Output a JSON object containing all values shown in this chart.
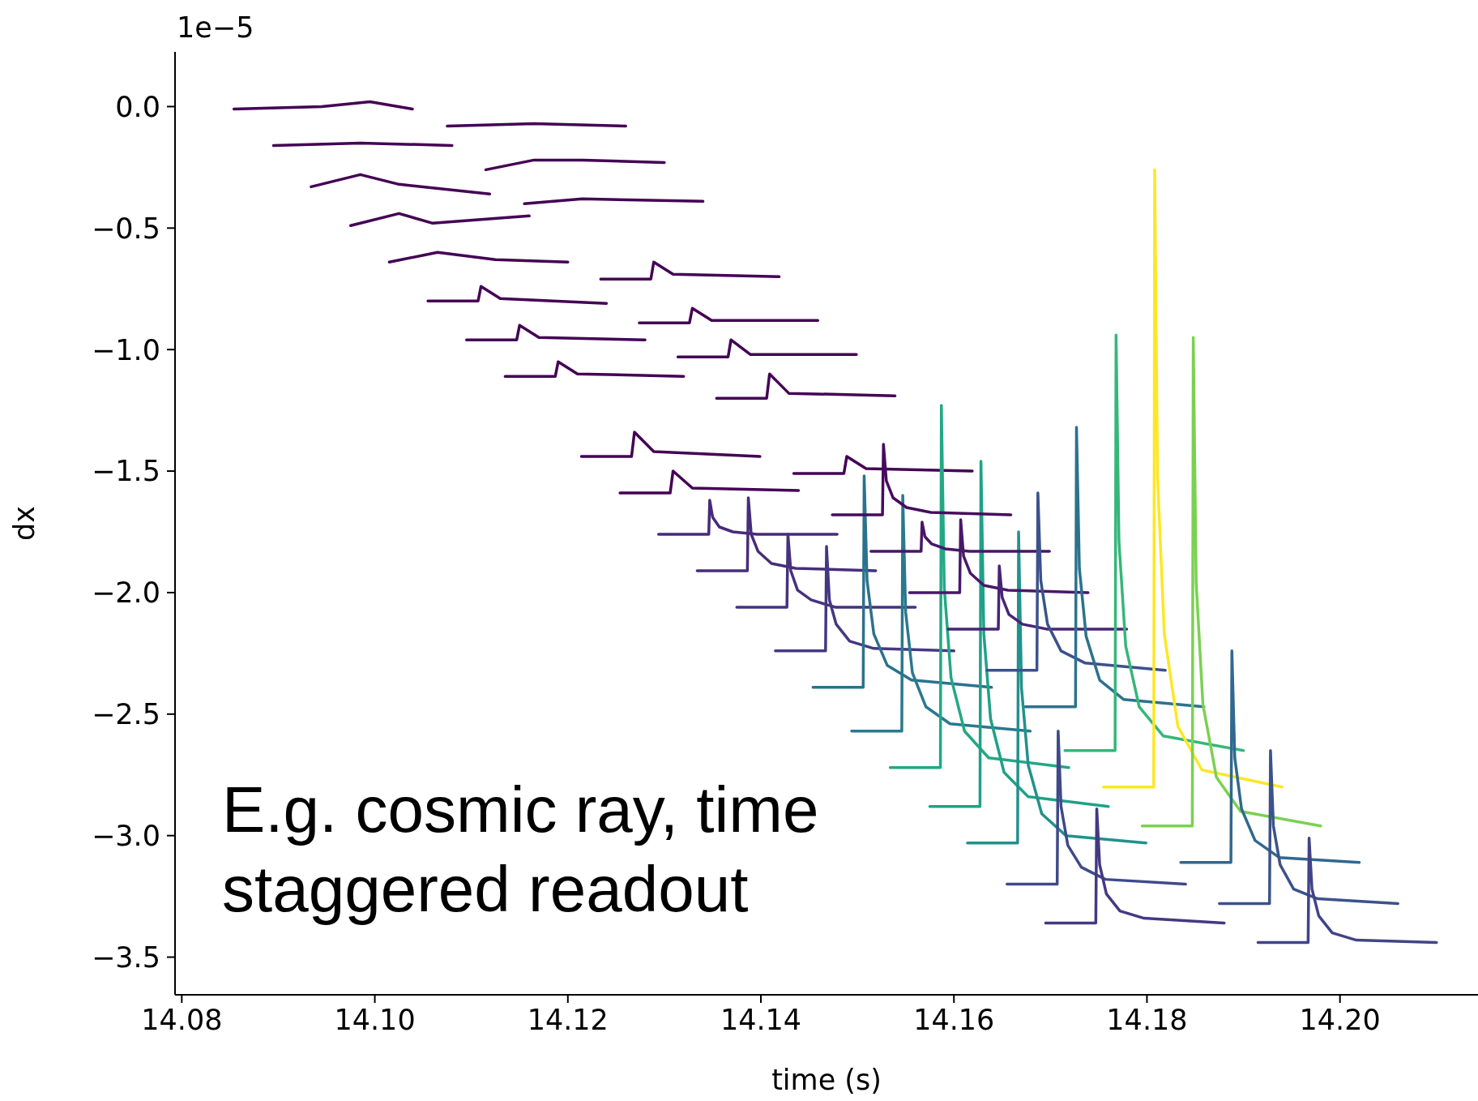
{
  "chart_data": {
    "type": "line",
    "xlabel": "time (s)",
    "ylabel": "dx",
    "annotations": [
      "1e−5",
      "E.g. cosmic ray, time staggered readout"
    ],
    "xlim": [
      14.0793,
      14.2143
    ],
    "ylim": [
      -3.655,
      0.225
    ],
    "xticks": [
      {
        "value": 14.08,
        "label": "14.08"
      },
      {
        "value": 14.1,
        "label": "14.10"
      },
      {
        "value": 14.12,
        "label": "14.12"
      },
      {
        "value": 14.14,
        "label": "14.14"
      },
      {
        "value": 14.16,
        "label": "14.16"
      },
      {
        "value": 14.18,
        "label": "14.18"
      },
      {
        "value": 14.2,
        "label": "14.20"
      }
    ],
    "yticks": [
      {
        "value": 0,
        "label": "0.0"
      },
      {
        "value": -0.5,
        "label": "−0.5"
      },
      {
        "value": -1,
        "label": "−1.0"
      },
      {
        "value": -1.5,
        "label": "−1.5"
      },
      {
        "value": -2,
        "label": "−2.0"
      },
      {
        "value": -2.5,
        "label": "−2.5"
      },
      {
        "value": -3,
        "label": "−3.0"
      },
      {
        "value": -3.5,
        "label": "−3.5"
      }
    ],
    "marker": "none",
    "series": [
      {
        "color": "#440154",
        "x": [
          14.0854,
          14.0945,
          14.0995,
          14.1039
        ],
        "values": [
          -0.01,
          0.0,
          0.02,
          -0.01
        ]
      },
      {
        "color": "#440154",
        "x": [
          14.0895,
          14.0985,
          14.108
        ],
        "values": [
          -0.16,
          -0.15,
          -0.16
        ]
      },
      {
        "color": "#440154",
        "x": [
          14.0934,
          14.0985,
          14.1025,
          14.1119
        ],
        "values": [
          -0.33,
          -0.28,
          -0.32,
          -0.36
        ]
      },
      {
        "color": "#440154",
        "x": [
          14.0975,
          14.1025,
          14.106,
          14.116
        ],
        "values": [
          -0.49,
          -0.44,
          -0.48,
          -0.45
        ]
      },
      {
        "color": "#440154",
        "x": [
          14.1015,
          14.1065,
          14.1125,
          14.12
        ],
        "values": [
          -0.64,
          -0.6,
          -0.63,
          -0.64
        ]
      },
      {
        "color": "#440154",
        "x": [
          14.1055,
          14.1107,
          14.111,
          14.113,
          14.124
        ],
        "values": [
          -0.8,
          -0.8,
          -0.74,
          -0.79,
          -0.81
        ]
      },
      {
        "color": "#440154",
        "x": [
          14.1095,
          14.1147,
          14.115,
          14.117,
          14.128
        ],
        "values": [
          -0.96,
          -0.96,
          -0.9,
          -0.95,
          -0.96
        ]
      },
      {
        "color": "#440154",
        "x": [
          14.1135,
          14.1187,
          14.119,
          14.121,
          14.132
        ],
        "values": [
          -1.11,
          -1.11,
          -1.05,
          -1.1,
          -1.11
        ]
      },
      {
        "color": "#440154",
        "x": [
          14.1075,
          14.1165,
          14.126
        ],
        "values": [
          -0.08,
          -0.07,
          -0.08
        ]
      },
      {
        "color": "#440154",
        "x": [
          14.1115,
          14.1165,
          14.1215,
          14.13
        ],
        "values": [
          -0.26,
          -0.22,
          -0.22,
          -0.23
        ]
      },
      {
        "color": "#440154",
        "x": [
          14.1155,
          14.1215,
          14.134
        ],
        "values": [
          -0.4,
          -0.38,
          -0.39
        ]
      },
      {
        "color": "#440154",
        "x": [
          14.1234,
          14.1286,
          14.1289,
          14.1309,
          14.1419
        ],
        "values": [
          -0.71,
          -0.71,
          -0.64,
          -0.69,
          -0.7
        ]
      },
      {
        "color": "#440154",
        "x": [
          14.1274,
          14.1326,
          14.1329,
          14.1349,
          14.1459
        ],
        "values": [
          -0.89,
          -0.89,
          -0.83,
          -0.88,
          -0.88
        ]
      },
      {
        "color": "#440154",
        "x": [
          14.1314,
          14.1366,
          14.1369,
          14.1389,
          14.1499
        ],
        "values": [
          -1.03,
          -1.03,
          -0.96,
          -1.02,
          -1.02
        ]
      },
      {
        "color": "#440154",
        "x": [
          14.1354,
          14.1406,
          14.1409,
          14.1429,
          14.1539
        ],
        "values": [
          -1.2,
          -1.2,
          -1.1,
          -1.18,
          -1.19
        ]
      },
      {
        "color": "#440154",
        "x": [
          14.1214,
          14.1266,
          14.1269,
          14.1289,
          14.1399
        ],
        "values": [
          -1.44,
          -1.44,
          -1.34,
          -1.42,
          -1.44
        ]
      },
      {
        "color": "#440154",
        "x": [
          14.1254,
          14.1306,
          14.1309,
          14.1329,
          14.1439
        ],
        "values": [
          -1.59,
          -1.59,
          -1.5,
          -1.57,
          -1.58
        ]
      },
      {
        "color": "#440154",
        "x": [
          14.1434,
          14.1486,
          14.1489,
          14.1509,
          14.1619
        ],
        "values": [
          -1.51,
          -1.51,
          -1.44,
          -1.49,
          -1.5
        ]
      },
      {
        "color": "#472a7a",
        "x": [
          14.1294,
          14.1346,
          14.1347,
          14.135,
          14.1357,
          14.1371,
          14.1396,
          14.1479
        ],
        "values": [
          -1.76,
          -1.76,
          -1.62,
          -1.69,
          -1.73,
          -1.75,
          -1.76,
          -1.76
        ]
      },
      {
        "color": "#472d7b",
        "x": [
          14.1334,
          14.1386,
          14.1387,
          14.139,
          14.1397,
          14.1411,
          14.1436,
          14.1519
        ],
        "values": [
          -1.91,
          -1.91,
          -1.61,
          -1.76,
          -1.83,
          -1.88,
          -1.9,
          -1.91
        ]
      },
      {
        "color": "#46327e",
        "x": [
          14.1375,
          14.1427,
          14.1428,
          14.1431,
          14.1438,
          14.1452,
          14.1477,
          14.156
        ],
        "values": [
          -2.06,
          -2.06,
          -1.76,
          -1.91,
          -1.99,
          -2.03,
          -2.06,
          -2.06
        ]
      },
      {
        "color": "#453882",
        "x": [
          14.1415,
          14.1467,
          14.1468,
          14.1471,
          14.1478,
          14.1492,
          14.1517,
          14.16
        ],
        "values": [
          -2.24,
          -2.24,
          -1.81,
          -2.03,
          -2.13,
          -2.2,
          -2.23,
          -2.24
        ]
      },
      {
        "color": "#2c718e",
        "x": [
          14.1454,
          14.1506,
          14.1507,
          14.151,
          14.1517,
          14.1531,
          14.1556,
          14.1639
        ],
        "values": [
          -2.39,
          -2.39,
          -1.52,
          -1.95,
          -2.17,
          -2.3,
          -2.36,
          -2.39
        ]
      },
      {
        "color": "#2a788e",
        "x": [
          14.1494,
          14.1546,
          14.1547,
          14.155,
          14.1557,
          14.1571,
          14.1596,
          14.1679
        ],
        "values": [
          -2.57,
          -2.57,
          -1.6,
          -2.08,
          -2.33,
          -2.47,
          -2.54,
          -2.57
        ]
      },
      {
        "color": "#22a884",
        "x": [
          14.1534,
          14.1586,
          14.1587,
          14.159,
          14.1597,
          14.1611,
          14.1636,
          14.1719
        ],
        "values": [
          -2.72,
          -2.72,
          -1.23,
          -1.98,
          -2.35,
          -2.57,
          -2.68,
          -2.72
        ]
      },
      {
        "color": "#1fa187",
        "x": [
          14.1575,
          14.1627,
          14.1628,
          14.1631,
          14.1638,
          14.1652,
          14.1677,
          14.176
        ],
        "values": [
          -2.88,
          -2.88,
          -1.46,
          -2.17,
          -2.52,
          -2.74,
          -2.84,
          -2.88
        ]
      },
      {
        "color": "#21918c",
        "x": [
          14.1614,
          14.1666,
          14.1667,
          14.167,
          14.1677,
          14.1691,
          14.1716,
          14.1799
        ],
        "values": [
          -3.03,
          -3.03,
          -1.75,
          -2.39,
          -2.71,
          -2.91,
          -3.0,
          -3.03
        ]
      },
      {
        "color": "#3e4a89",
        "x": [
          14.1655,
          14.1707,
          14.1708,
          14.1711,
          14.1718,
          14.1732,
          14.1757,
          14.184
        ],
        "values": [
          -3.2,
          -3.2,
          -2.57,
          -2.88,
          -3.04,
          -3.13,
          -3.18,
          -3.2
        ]
      },
      {
        "color": "#443983",
        "x": [
          14.1695,
          14.1747,
          14.1748,
          14.1751,
          14.1758,
          14.1772,
          14.1797,
          14.188
        ],
        "values": [
          -3.36,
          -3.36,
          -2.89,
          -3.12,
          -3.24,
          -3.31,
          -3.34,
          -3.36
        ]
      },
      {
        "color": "#460b5e",
        "x": [
          14.1474,
          14.1526,
          14.1527,
          14.153,
          14.1537,
          14.1551,
          14.1576,
          14.1659
        ],
        "values": [
          -1.68,
          -1.68,
          -1.39,
          -1.54,
          -1.61,
          -1.65,
          -1.67,
          -1.68
        ]
      },
      {
        "color": "#481668",
        "x": [
          14.1514,
          14.1566,
          14.1567,
          14.157,
          14.1577,
          14.1591,
          14.1616,
          14.1699
        ],
        "values": [
          -1.83,
          -1.83,
          -1.71,
          -1.77,
          -1.8,
          -1.82,
          -1.83,
          -1.83
        ]
      },
      {
        "color": "#48186a",
        "x": [
          14.1554,
          14.1606,
          14.1607,
          14.161,
          14.1617,
          14.1631,
          14.1656,
          14.1739
        ],
        "values": [
          -2.0,
          -2.0,
          -1.7,
          -1.85,
          -1.92,
          -1.97,
          -1.99,
          -2.0
        ]
      },
      {
        "color": "#482475",
        "x": [
          14.1594,
          14.1646,
          14.1647,
          14.165,
          14.1657,
          14.1671,
          14.1696,
          14.1779
        ],
        "values": [
          -2.15,
          -2.15,
          -1.89,
          -2.02,
          -2.09,
          -2.13,
          -2.15,
          -2.15
        ]
      },
      {
        "color": "#3b528b",
        "x": [
          14.1634,
          14.1686,
          14.1687,
          14.169,
          14.1697,
          14.1711,
          14.1736,
          14.1819
        ],
        "values": [
          -2.32,
          -2.32,
          -1.59,
          -1.95,
          -2.13,
          -2.24,
          -2.29,
          -2.32
        ]
      },
      {
        "color": "#2c728e",
        "x": [
          14.1674,
          14.1726,
          14.1727,
          14.173,
          14.1737,
          14.1751,
          14.1776,
          14.1859
        ],
        "values": [
          -2.47,
          -2.47,
          -1.32,
          -1.9,
          -2.18,
          -2.36,
          -2.44,
          -2.47
        ]
      },
      {
        "color": "#35b779",
        "x": [
          14.1715,
          14.1767,
          14.1768,
          14.1771,
          14.1778,
          14.1792,
          14.1817,
          14.19
        ],
        "values": [
          -2.65,
          -2.65,
          -0.94,
          -1.79,
          -2.22,
          -2.47,
          -2.59,
          -2.65
        ]
      },
      {
        "color": "#fde725",
        "x": [
          14.1755,
          14.1807,
          14.1808,
          14.1811,
          14.1818,
          14.1832,
          14.1857,
          14.194
        ],
        "values": [
          -2.8,
          -2.8,
          -0.26,
          -1.53,
          -2.17,
          -2.55,
          -2.73,
          -2.8
        ]
      },
      {
        "color": "#7ad151",
        "x": [
          14.1795,
          14.1847,
          14.1848,
          14.1851,
          14.1858,
          14.1872,
          14.1897,
          14.198
        ],
        "values": [
          -2.96,
          -2.96,
          -0.95,
          -1.96,
          -2.46,
          -2.76,
          -2.9,
          -2.96
        ]
      },
      {
        "color": "#31688e",
        "x": [
          14.1835,
          14.1887,
          14.1888,
          14.1891,
          14.1898,
          14.1912,
          14.1937,
          14.202
        ],
        "values": [
          -3.11,
          -3.11,
          -2.24,
          -2.68,
          -2.89,
          -3.02,
          -3.09,
          -3.11
        ]
      },
      {
        "color": "#3b528b",
        "x": [
          14.1875,
          14.1927,
          14.1928,
          14.1931,
          14.1938,
          14.1952,
          14.1977,
          14.206
        ],
        "values": [
          -3.28,
          -3.28,
          -2.65,
          -2.96,
          -3.12,
          -3.22,
          -3.26,
          -3.28
        ]
      },
      {
        "color": "#414487",
        "x": [
          14.1915,
          14.1967,
          14.1968,
          14.1971,
          14.1978,
          14.1992,
          14.2017,
          14.21
        ],
        "values": [
          -3.44,
          -3.44,
          -3.01,
          -3.22,
          -3.33,
          -3.4,
          -3.43,
          -3.44
        ]
      }
    ]
  }
}
